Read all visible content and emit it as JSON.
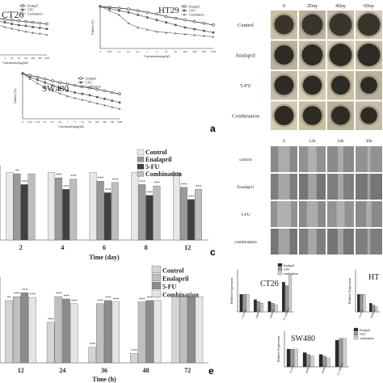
{
  "panel_letters": [
    "a",
    "c",
    "e"
  ],
  "chart_data": [
    {
      "id": "ct26-viability",
      "type": "line",
      "title": "CT26",
      "xlabel": "Concentration(µg/ml)",
      "ylabel": "",
      "x": [
        "0",
        "0.5",
        "1",
        "5",
        "10",
        "50",
        "100",
        "200",
        "500",
        "1000"
      ],
      "series": [
        {
          "name": "Enalapril",
          "values": [
            100,
            96,
            94,
            92,
            90,
            88,
            86,
            84,
            82,
            80
          ]
        },
        {
          "name": "5-FU",
          "values": [
            100,
            92,
            88,
            84,
            80,
            77,
            75,
            72,
            70,
            67
          ]
        },
        {
          "name": "Combination",
          "values": [
            100,
            85,
            78,
            72,
            68,
            64,
            60,
            57,
            55,
            52
          ]
        }
      ]
    },
    {
      "id": "ht29-viability",
      "type": "line",
      "title": "HT29",
      "xlabel": "Concentration(µg/ml)",
      "ylabel": "Viability (%)",
      "x": [
        "0",
        "0.05",
        "0.1",
        "0.2",
        "0.5",
        "1",
        "5",
        "10",
        "50",
        "100",
        "200",
        "500",
        "1000"
      ],
      "series": [
        {
          "name": "Enalapril",
          "values": [
            100,
            98,
            96,
            94,
            90,
            86,
            82,
            76,
            72,
            68,
            64,
            60,
            56
          ]
        },
        {
          "name": "5-FU",
          "values": [
            100,
            95,
            90,
            86,
            80,
            74,
            68,
            62,
            56,
            50,
            46,
            42,
            38
          ]
        },
        {
          "name": "Combination",
          "values": [
            100,
            90,
            80,
            60,
            50,
            45,
            40,
            38,
            36,
            34,
            32,
            30,
            28
          ]
        }
      ]
    },
    {
      "id": "sw480-viability",
      "type": "line",
      "title": "SW480",
      "xlabel": "Concentration(µg/ml)",
      "ylabel": "Viability (%)",
      "x": [
        "0",
        "0.01",
        "0.05",
        "0.1",
        "0.2",
        "0.5",
        "1",
        "5",
        "10",
        "50",
        "100",
        "200",
        "500",
        "1000"
      ],
      "series": [
        {
          "name": "Enalapril",
          "values": [
            100,
            96,
            92,
            88,
            84,
            80,
            77,
            74,
            71,
            68,
            65,
            62,
            58,
            55
          ]
        },
        {
          "name": "5-FU",
          "values": [
            100,
            92,
            86,
            80,
            74,
            68,
            62,
            58,
            55,
            52,
            48,
            44,
            40,
            36
          ]
        },
        {
          "name": "Combination",
          "values": [
            100,
            88,
            78,
            70,
            62,
            56,
            50,
            46,
            42,
            38,
            34,
            30,
            26,
            22
          ]
        }
      ]
    },
    {
      "id": "spheroid-bar",
      "type": "bar",
      "title": "",
      "xlabel": "Time (day)",
      "ylabel": "",
      "categories": [
        "2",
        "4",
        "6",
        "8",
        "12"
      ],
      "ylim": [
        0,
        110
      ],
      "series": [
        {
          "name": "Control",
          "color": "#e8e8e8",
          "values": [
            100,
            100,
            100,
            100,
            100
          ]
        },
        {
          "name": "Enalapril",
          "color": "#9a9a9a",
          "values": [
            98,
            92,
            87,
            82,
            78
          ]
        },
        {
          "name": "5-FU",
          "color": "#404040",
          "values": [
            82,
            75,
            70,
            66,
            60
          ]
        },
        {
          "name": "Combination",
          "color": "#bdbdbd",
          "values": [
            98,
            90,
            85,
            80,
            75
          ]
        }
      ],
      "annotations": [
        [
          "",
          "**",
          "***",
          ""
        ],
        [
          "",
          "***",
          "***",
          "***"
        ],
        [
          "",
          "***",
          "***",
          "***"
        ],
        [
          "",
          "***",
          "***",
          "***"
        ],
        [
          "",
          "***",
          "***",
          "***"
        ]
      ]
    },
    {
      "id": "wound-bar",
      "type": "bar",
      "title": "",
      "xlabel": "Time (h)",
      "ylabel": "",
      "categories": [
        "12",
        "24",
        "36",
        "48",
        "72"
      ],
      "ylim": [
        0,
        110
      ],
      "series": [
        {
          "name": "Control",
          "color": "#d4d4d4",
          "values": [
            80,
            52,
            20,
            12,
            85
          ]
        },
        {
          "name": "Enalapril",
          "color": "#bfbfbf",
          "values": [
            85,
            85,
            76,
            78,
            85
          ]
        },
        {
          "name": "5-FU",
          "color": "#8c8c8c",
          "values": [
            90,
            82,
            80,
            80,
            85
          ]
        },
        {
          "name": "Combination",
          "color": "#e4e4e4",
          "values": [
            84,
            76,
            78,
            80,
            85
          ]
        }
      ],
      "annotations": [
        [
          "**",
          "***",
          "***",
          "***"
        ],
        [
          "***",
          "***",
          "***",
          "***"
        ],
        [
          "***",
          "***",
          "***",
          "***"
        ],
        [
          "***",
          "***",
          "***",
          "***"
        ],
        [
          "",
          "",
          "",
          ""
        ]
      ]
    },
    {
      "id": "ct26-expression",
      "type": "bar",
      "title": "CT26",
      "xlabel": "",
      "ylabel": "Relative Expression",
      "categories": [
        "Control",
        "MMP-2",
        "MMP-9",
        "E-Cadherin"
      ],
      "series": [
        {
          "name": "Enalapril",
          "color": "#2a2a2a",
          "values": [
            1.0,
            0.7,
            0.6,
            1.7
          ]
        },
        {
          "name": "5-FU",
          "color": "#9a9a9a",
          "values": [
            1.0,
            0.6,
            0.5,
            1.5
          ]
        },
        {
          "name": "combination",
          "color": "#d0d0d0",
          "values": [
            1.0,
            0.5,
            0.4,
            2.1
          ]
        }
      ]
    },
    {
      "id": "ht29-expression",
      "type": "bar",
      "title": "HT",
      "xlabel": "",
      "ylabel": "Relative Expression",
      "categories": [
        "Control",
        "MMP-2"
      ],
      "series": [
        {
          "name": "Enalapril",
          "color": "#2a2a2a",
          "values": [
            1.0,
            0.5
          ]
        },
        {
          "name": "5-FU",
          "color": "#9a9a9a",
          "values": [
            1.0,
            0.4
          ]
        },
        {
          "name": "combination",
          "color": "#d0d0d0",
          "values": [
            1.0,
            0.3
          ]
        }
      ]
    },
    {
      "id": "sw480-expression",
      "type": "bar",
      "title": "SW480",
      "xlabel": "",
      "ylabel": "Relative Expression",
      "categories": [
        "Control",
        "MMP-2",
        "MMP-9",
        "E-Cadherin"
      ],
      "series": [
        {
          "name": "Enalapril",
          "color": "#2a2a2a",
          "values": [
            1.0,
            0.8,
            0.7,
            1.5
          ]
        },
        {
          "name": "5-FU",
          "color": "#9a9a9a",
          "values": [
            1.0,
            0.7,
            0.6,
            1.6
          ]
        },
        {
          "name": "combination",
          "color": "#d0d0d0",
          "values": [
            1.0,
            0.6,
            0.5,
            1.6
          ]
        }
      ]
    }
  ],
  "spheroid_grid": {
    "columns": [
      "0",
      "2Day",
      "4Day",
      "6Day"
    ],
    "rows": [
      "Control",
      "Enalapril",
      "5-FU",
      "Combination"
    ]
  },
  "wound_grid": {
    "columns": [
      "0",
      "12h",
      "24h",
      "36h"
    ],
    "rows": [
      "control",
      "Enalapril",
      "5-FU",
      "combination"
    ]
  }
}
